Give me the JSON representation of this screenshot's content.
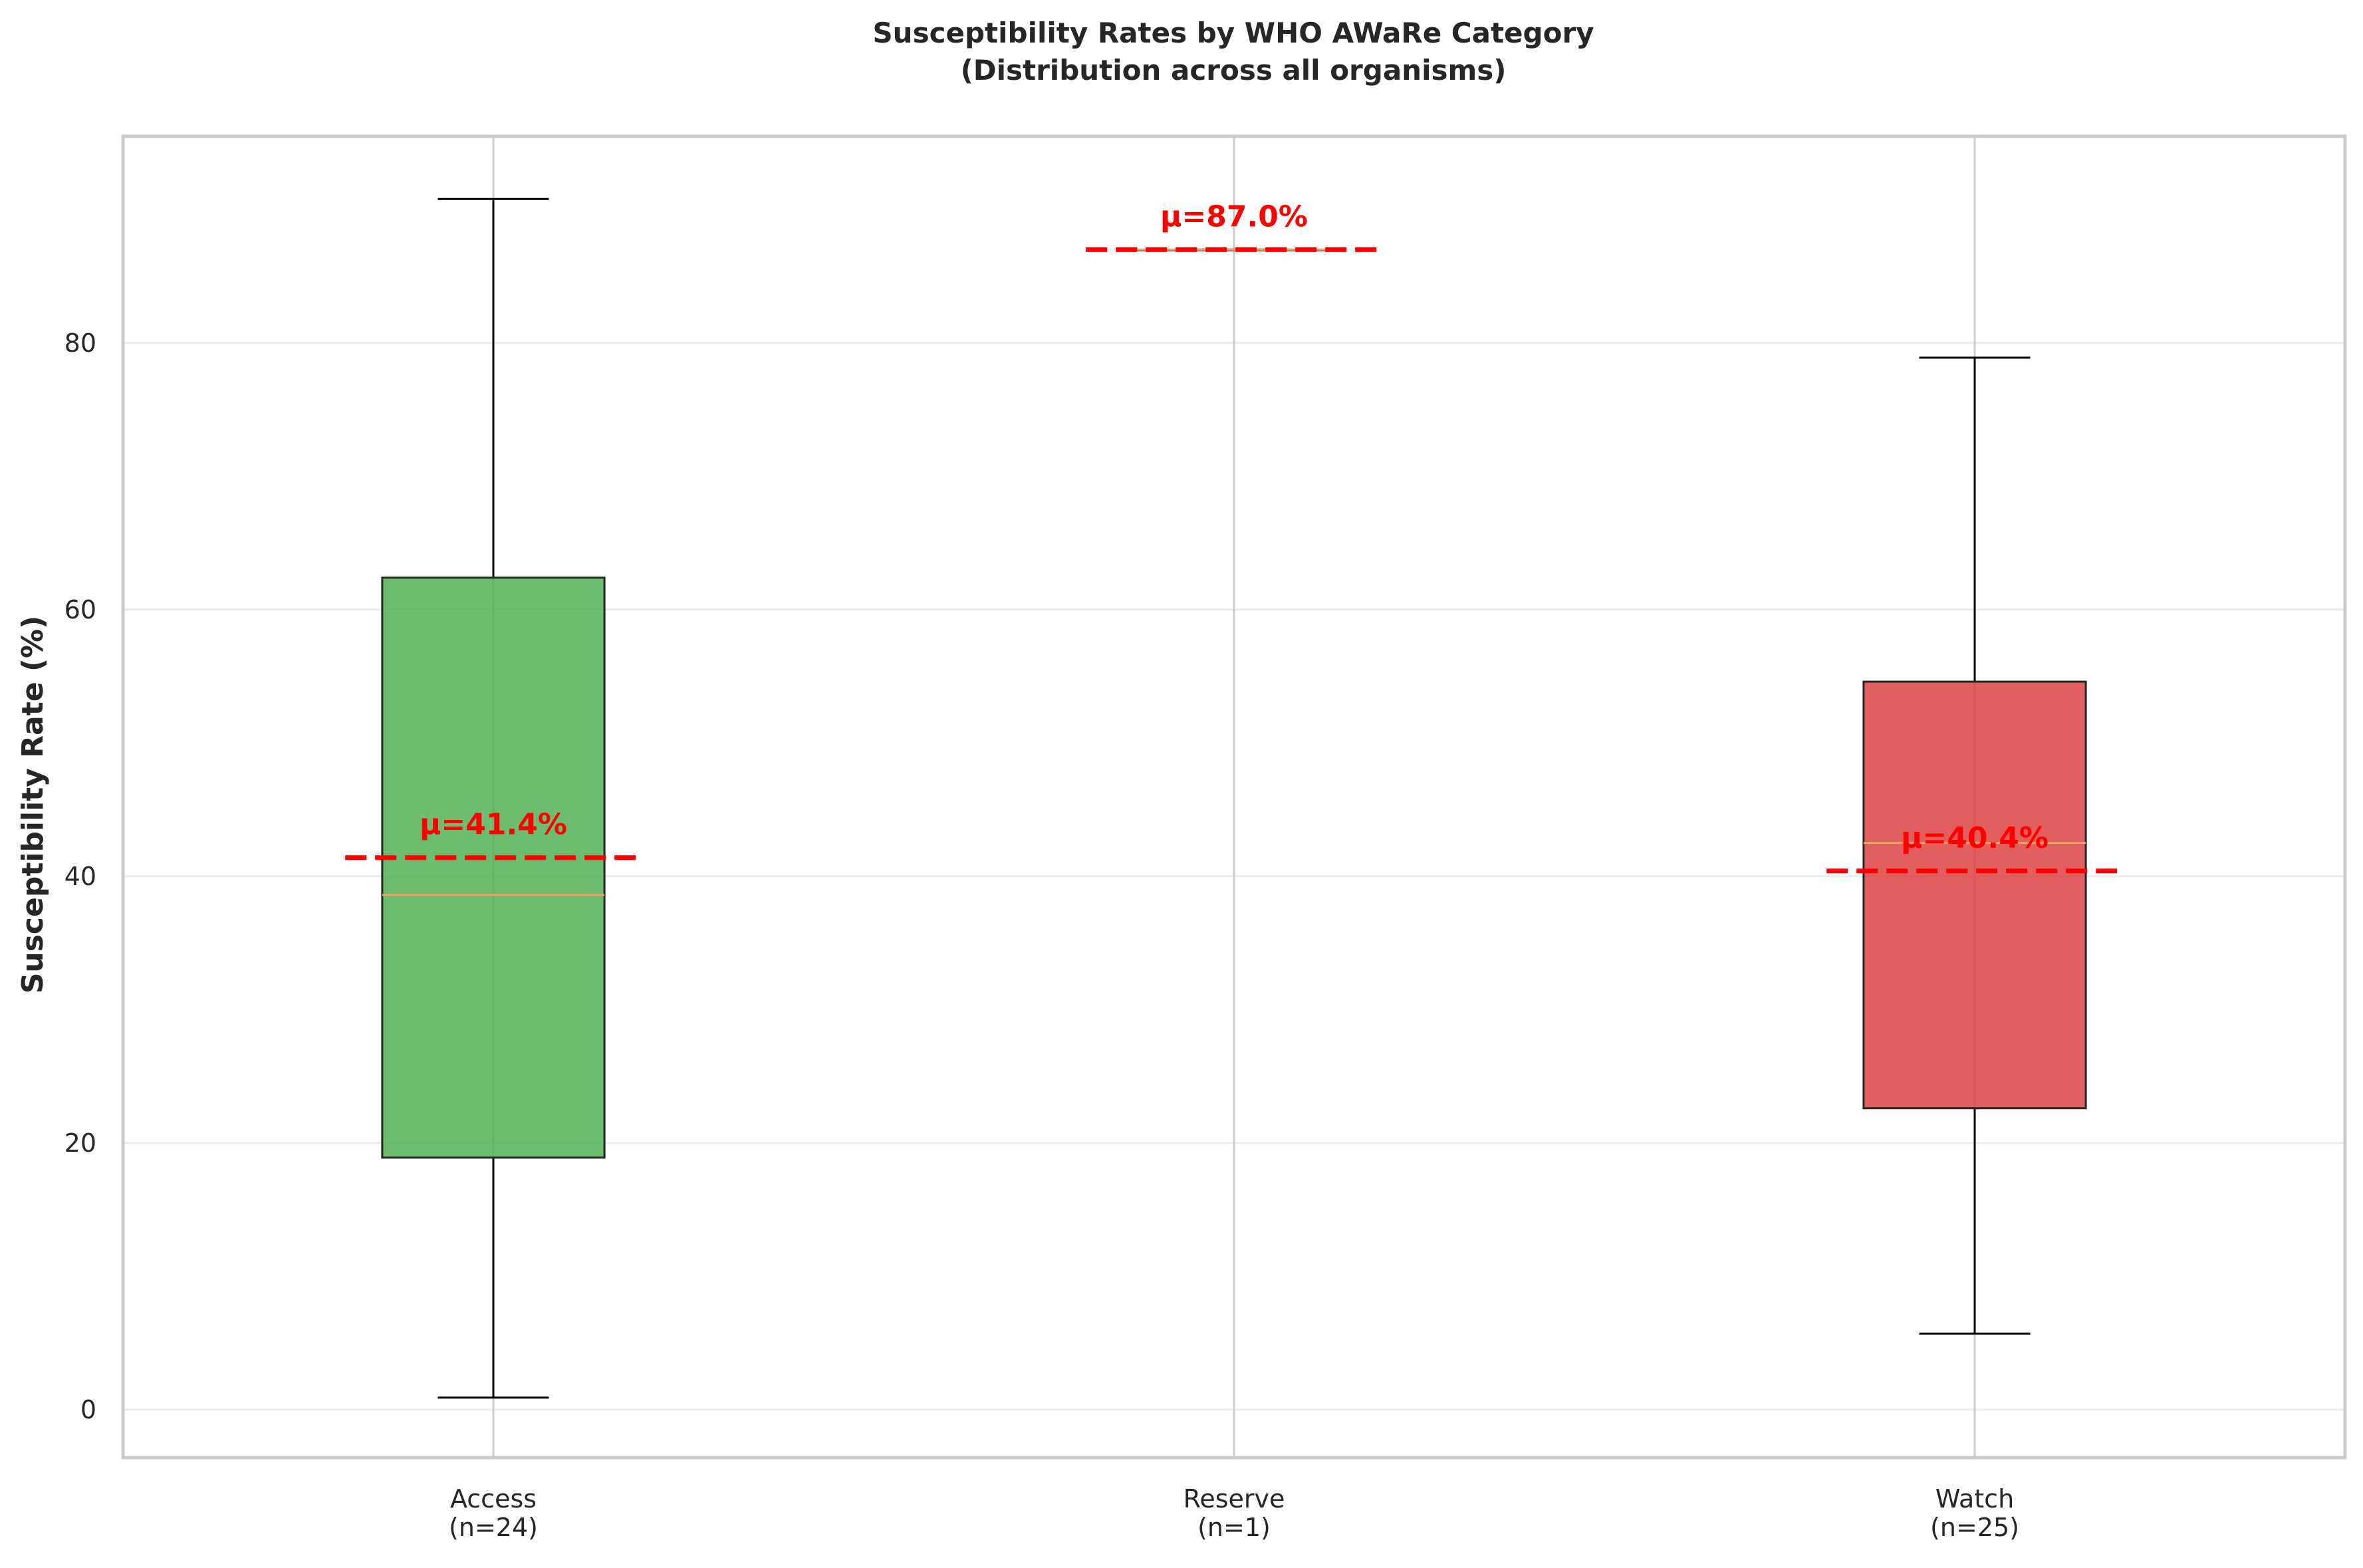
{
  "chart_data": {
    "type": "box",
    "title": "Susceptibility Rates by WHO AWaRe Category",
    "subtitle": "(Distribution across all organisms)",
    "xlabel": "",
    "ylabel": "Susceptibility Rate (%)",
    "ylim": [
      -3.6,
      95.5
    ],
    "yticks": [
      0,
      20,
      40,
      60,
      80
    ],
    "grid": true,
    "categories": [
      {
        "name": "Access",
        "n_label": "(n=24)",
        "color": "#4caf50",
        "whisker_low": 0.9,
        "q1": 18.9,
        "median": 38.6,
        "q3": 62.4,
        "whisker_high": 90.8,
        "mean": 41.4,
        "mean_label": "μ=41.4%"
      },
      {
        "name": "Reserve",
        "n_label": "(n=1)",
        "color": "#ff7f0e",
        "whisker_low": 87.0,
        "q1": 87.0,
        "median": 87.0,
        "q3": 87.0,
        "whisker_high": 87.0,
        "mean": 87.0,
        "mean_label": "μ=87.0%"
      },
      {
        "name": "Watch",
        "n_label": "(n=25)",
        "color": "#dc3c3c",
        "whisker_low": 5.7,
        "q1": 22.6,
        "median": 42.5,
        "q3": 54.6,
        "whisker_high": 78.9,
        "mean": 40.4,
        "mean_label": "μ=40.4%"
      }
    ],
    "colors": {
      "median": "#f4a460",
      "mean_line": "#ff0000",
      "box_edge": "#262626",
      "whisker": "#000000",
      "grid": "#ebebeb",
      "frame": "#cccccc"
    }
  }
}
